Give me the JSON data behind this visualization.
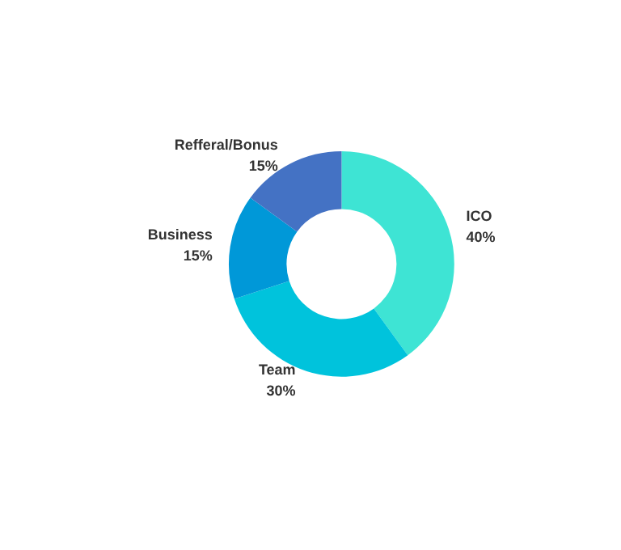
{
  "chart_data": {
    "type": "donut",
    "categories": [
      "ICO",
      "Team",
      "Business",
      "Refferal/Bonus"
    ],
    "values": [
      40,
      30,
      15,
      15
    ],
    "value_labels": [
      "40%",
      "30%",
      "15%",
      "15%"
    ],
    "colors": [
      "#3ee4d4",
      "#00c3dc",
      "#0098d8",
      "#4472c4"
    ],
    "legend": false
  }
}
